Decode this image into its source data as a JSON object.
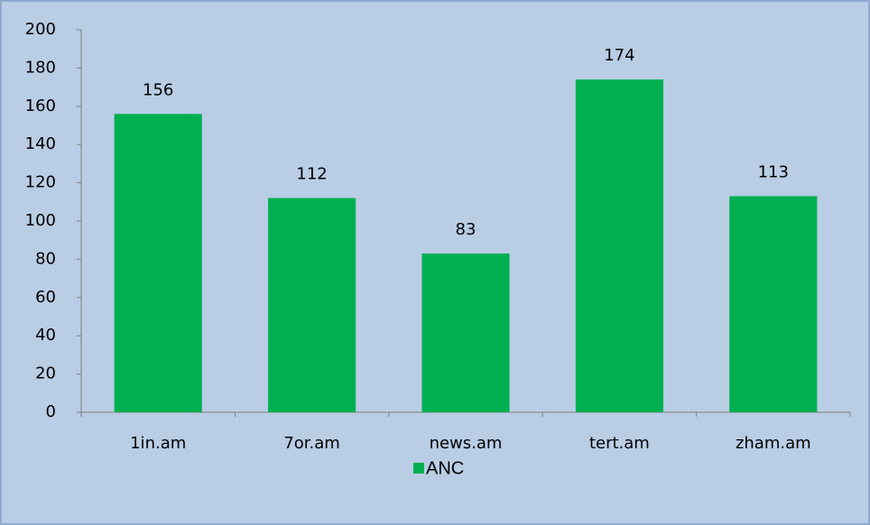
{
  "chart_data": {
    "type": "bar",
    "categories": [
      "1in.am",
      "7or.am",
      "news.am",
      "tert.am",
      "zham.am"
    ],
    "series": [
      {
        "name": "ANC",
        "color": "#00b050",
        "values": [
          156,
          112,
          83,
          174,
          113
        ]
      }
    ],
    "ylim": [
      0,
      200
    ],
    "yticks": [
      0,
      20,
      40,
      60,
      80,
      100,
      120,
      140,
      160,
      180,
      200
    ],
    "grid": false,
    "legend": "bottom",
    "data_labels": true
  }
}
